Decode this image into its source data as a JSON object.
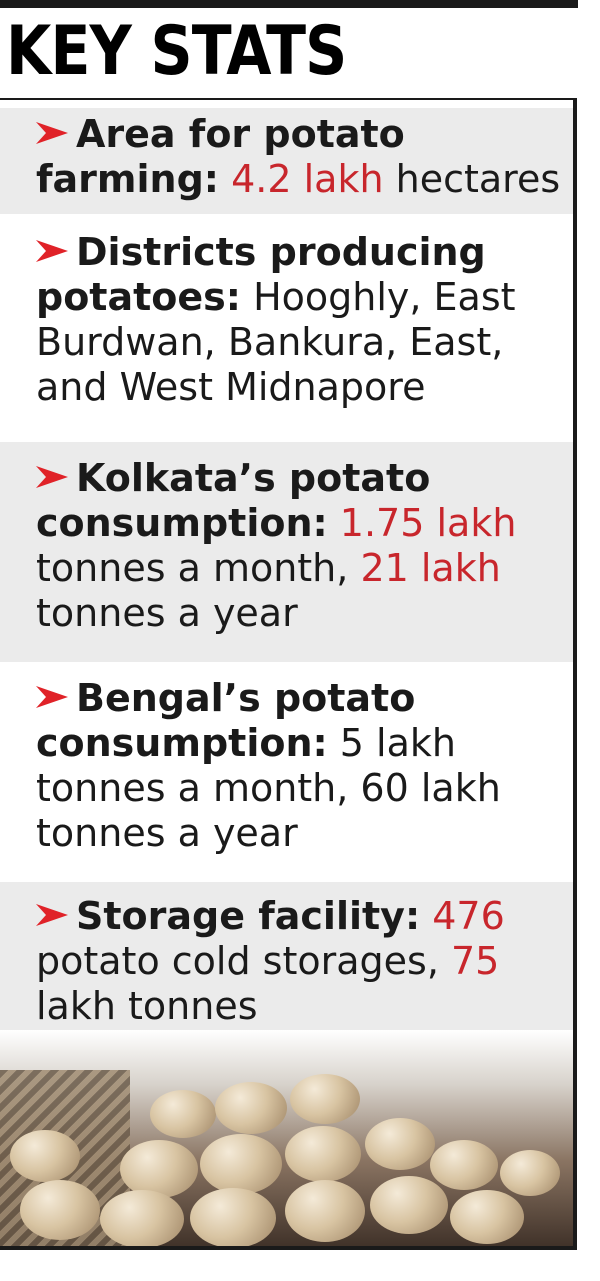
{
  "title": "KEY STATS",
  "colors": {
    "accent_red": "#e02228",
    "highlight_red": "#c8262c",
    "shade": "#ebebeb",
    "ink": "#1a1a1a"
  },
  "stats": [
    {
      "label": "Area for potato farming:",
      "parts": [
        {
          "text": "4.2 lakh",
          "hi": true
        },
        {
          "text": " hectares",
          "hi": false
        }
      ]
    },
    {
      "label": "Districts producing potatoes:",
      "parts": [
        {
          "text": " Hooghly, East Burdwan, Bankura, East, and West Midnapore",
          "hi": false
        }
      ]
    },
    {
      "label": "Kolkata’s potato consumption:",
      "parts": [
        {
          "text": " ",
          "hi": false
        },
        {
          "text": "1.75 lakh",
          "hi": true
        },
        {
          "text": " tonnes a month, ",
          "hi": false
        },
        {
          "text": "21 lakh",
          "hi": true
        },
        {
          "text": " tonnes a year",
          "hi": false
        }
      ]
    },
    {
      "label": "Bengal’s potato consumption:",
      "parts": [
        {
          "text": " 5 lakh tonnes a month, 60 lakh tonnes a year",
          "hi": false
        }
      ]
    },
    {
      "label": "Storage facility:",
      "parts": [
        {
          "text": " ",
          "hi": false
        },
        {
          "text": "476",
          "hi": true
        },
        {
          "text": " potato cold storages, ",
          "hi": false
        },
        {
          "text": "75",
          "hi": true
        },
        {
          "text": " lakh tonnes",
          "hi": false
        }
      ]
    }
  ],
  "image": {
    "icon": "potatoes-photo"
  }
}
